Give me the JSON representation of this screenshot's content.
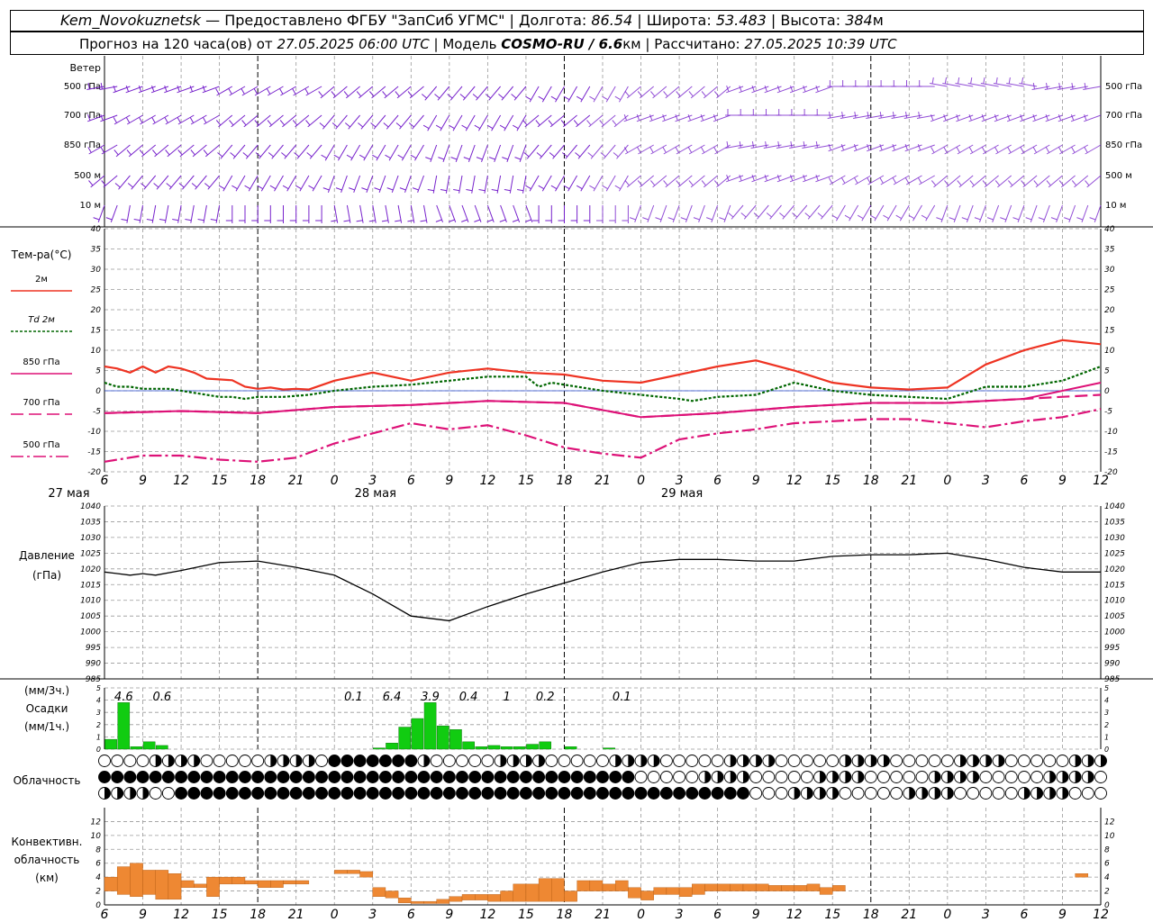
{
  "header": {
    "station": "Kem_Novokuznetsk",
    "dash": "—",
    "provider": "Предоставлено ФГБУ \"ЗапСиб УГМС\"",
    "lon_label": "Долгота:",
    "lon": "86.54",
    "lat_label": "Широта:",
    "lat": "53.483",
    "alt_label": "Высота:",
    "alt": "384",
    "alt_unit": "м",
    "sep": "|",
    "forecast_prefix": "Прогноз на 120 часа(ов) от",
    "forecast_from": "27.05.2025 06:00 UTC",
    "model_label": "Модель",
    "model": "COSMO-RU / 6.6",
    "model_unit": "км",
    "calc_label": "Рассчитано:",
    "calc_time": "27.05.2025 10:39 UTC"
  },
  "colors": {
    "t2m": "#ee3322",
    "td2m": "#006600",
    "t850": "#dd1177",
    "t700": "#dd1177",
    "t500": "#dd1177",
    "pressure": "#000000",
    "precip": "#11cc11",
    "convective": "#ee8833",
    "wind": "#7722cc",
    "grid": "#999999"
  },
  "time_axis": {
    "hour_ticks": [
      "6",
      "9",
      "12",
      "15",
      "18",
      "21",
      "0",
      "3",
      "6",
      "9",
      "12",
      "15",
      "18",
      "21",
      "0",
      "3",
      "6",
      "9",
      "12",
      "15",
      "18",
      "21",
      "0",
      "3",
      "6",
      "9",
      "12"
    ],
    "day_labels": [
      {
        "hour": 3,
        "label": "27 мая"
      },
      {
        "hour": 27,
        "label": "28 мая"
      },
      {
        "hour": 51,
        "label": "29 мая"
      }
    ],
    "day_boundaries": [
      18,
      42,
      66
    ]
  },
  "wind_panel": {
    "title": "Ветер",
    "levels": [
      "500 гПа",
      "700 гПа",
      "850 гПа",
      "500 м",
      "10 м"
    ]
  },
  "temp_panel": {
    "title": "Тем-ра(°С)",
    "legend": [
      "2м",
      "Td 2м",
      "850 гПа",
      "700 гПа",
      "500 гПа"
    ]
  },
  "pressure_panel": {
    "title_line1": "Давление",
    "title_line2": "(гПа)"
  },
  "precip_panel": {
    "title_line1": "(мм/3ч.)",
    "title_line2": "Осадки",
    "title_line3": "(мм/1ч.)"
  },
  "cloud_panel": {
    "title": "Облачность"
  },
  "conv_panel": {
    "title_line1": "Конвективн.",
    "title_line2": "облачность",
    "title_line3": "(км)"
  },
  "chart_data": [
    {
      "type": "line",
      "title": "Тем-ра(°С)",
      "xlabel": "",
      "ylabel": "Тем-ра(°С)",
      "x_unit": "hours from 27.05.2025 00 UTC",
      "xlim": [
        6,
        84
      ],
      "ylim": [
        -20,
        40
      ],
      "yticks": [
        -20,
        -15,
        -10,
        -5,
        0,
        5,
        10,
        15,
        20,
        25,
        30,
        35,
        40
      ],
      "grid": true,
      "series": [
        {
          "name": "2м",
          "x": [
            6,
            7,
            8,
            9,
            10,
            11,
            12,
            13,
            14,
            15,
            16,
            17,
            18,
            19,
            20,
            21,
            22,
            24,
            27,
            30,
            33,
            36,
            39,
            42,
            45,
            48,
            51,
            54,
            57,
            60,
            63,
            66,
            69,
            72,
            75,
            78,
            81,
            84
          ],
          "values": [
            6,
            5.5,
            4.5,
            6,
            4.5,
            6,
            5.5,
            4.5,
            3,
            2.8,
            2.6,
            1,
            0.5,
            0.8,
            0.3,
            0.5,
            0.3,
            2.5,
            4.5,
            2.5,
            4.5,
            5.5,
            4.5,
            4,
            2.5,
            2,
            4,
            6,
            7.5,
            5,
            2,
            0.8,
            0.3,
            0.8,
            6.5,
            10,
            12.5,
            11.5
          ]
        },
        {
          "name": "Td 2м",
          "x": [
            6,
            7,
            8,
            9,
            10,
            11,
            12,
            14,
            15,
            16,
            17,
            18,
            20,
            22,
            24,
            27,
            30,
            33,
            36,
            39,
            40,
            41,
            42,
            45,
            48,
            51,
            52,
            54,
            57,
            60,
            63,
            66,
            69,
            72,
            75,
            78,
            81,
            84
          ],
          "values": [
            2,
            1,
            1,
            0.5,
            0.5,
            0.5,
            0,
            -1,
            -1.5,
            -1.5,
            -2,
            -1.5,
            -1.5,
            -1,
            0,
            1,
            1.5,
            2.5,
            3.5,
            3.5,
            1,
            2,
            1.5,
            0,
            -1,
            -2,
            -2.5,
            -1.5,
            -1,
            2,
            0,
            -1,
            -1.5,
            -2,
            1,
            1,
            2.5,
            6
          ]
        },
        {
          "name": "850 гПа",
          "x": [
            6,
            12,
            18,
            24,
            30,
            36,
            42,
            48,
            54,
            60,
            66,
            72,
            78,
            84
          ],
          "values": [
            -5.5,
            -5,
            -5.5,
            -4,
            -3.5,
            -2.5,
            -3,
            -6.5,
            -5.5,
            -4,
            -3,
            -3,
            -2,
            2
          ]
        },
        {
          "name": "700 гПа",
          "x": [
            6,
            12,
            18,
            24,
            30,
            36,
            42,
            48,
            54,
            60,
            66,
            72,
            78,
            84
          ],
          "values": [
            -5.5,
            -5,
            -5.5,
            -4,
            -3.5,
            -2.5,
            -3,
            -6.5,
            -5.5,
            -4,
            -3,
            -3,
            -2,
            -1
          ]
        },
        {
          "name": "500 гПа",
          "x": [
            6,
            9,
            12,
            15,
            18,
            21,
            24,
            27,
            30,
            33,
            36,
            39,
            42,
            45,
            48,
            51,
            54,
            57,
            60,
            63,
            66,
            69,
            72,
            75,
            78,
            81,
            84
          ],
          "values": [
            -17.5,
            -16,
            -16,
            -17,
            -17.5,
            -16.5,
            -13,
            -10.5,
            -8,
            -9.5,
            -8.5,
            -11,
            -14,
            -15.5,
            -16.5,
            -12,
            -10.5,
            -9.5,
            -8,
            -7.5,
            -7,
            -7,
            -8,
            -9,
            -7.5,
            -6.5,
            -4.5
          ]
        }
      ]
    },
    {
      "type": "line",
      "title": "Давление",
      "ylabel": "(гПа)",
      "xlim": [
        6,
        84
      ],
      "ylim": [
        985,
        1040
      ],
      "yticks": [
        985,
        990,
        995,
        1000,
        1005,
        1010,
        1015,
        1020,
        1025,
        1030,
        1035,
        1040
      ],
      "grid": true,
      "series": [
        {
          "name": "",
          "x": [
            6,
            8,
            9,
            10,
            12,
            15,
            18,
            21,
            24,
            27,
            30,
            33,
            36,
            39,
            42,
            45,
            48,
            51,
            54,
            57,
            60,
            63,
            66,
            69,
            72,
            75,
            78,
            81,
            84
          ],
          "values": [
            1019,
            1018,
            1018.5,
            1018,
            1019.5,
            1022,
            1022.5,
            1020.5,
            1018,
            1012,
            1005,
            1003.5,
            1008,
            1012,
            1015.5,
            1019,
            1022,
            1023,
            1023,
            1022.5,
            1022.5,
            1024,
            1024.5,
            1024.5,
            1025,
            1023,
            1020.5,
            1019,
            1019
          ]
        }
      ]
    },
    {
      "type": "bar",
      "title": "Осадки",
      "ylabel": "(мм/1ч.)",
      "xlim": [
        6,
        84
      ],
      "ylim": [
        0,
        5
      ],
      "yticks": [
        0,
        1,
        2,
        3,
        4,
        5
      ],
      "series": [
        {
          "name": "мм/1ч",
          "x": [
            6,
            7,
            8,
            9,
            10,
            27,
            28,
            29,
            30,
            31,
            32,
            33,
            34,
            35,
            36,
            37,
            38,
            39,
            40,
            42,
            45
          ],
          "values": [
            0.8,
            3.8,
            0.2,
            0.6,
            0.3,
            0.1,
            0.5,
            1.8,
            2.5,
            3.8,
            1.9,
            1.6,
            0.6,
            0.2,
            0.3,
            0.2,
            0.2,
            0.4,
            0.6,
            0.2,
            0.1
          ]
        }
      ],
      "labels_3h": [
        {
          "x": 7.5,
          "text": "4.6"
        },
        {
          "x": 10.5,
          "text": "0.6"
        },
        {
          "x": 25.5,
          "text": "0.1"
        },
        {
          "x": 28.5,
          "text": "6.4"
        },
        {
          "x": 31.5,
          "text": "3.9"
        },
        {
          "x": 34.5,
          "text": "0.4"
        },
        {
          "x": 37.5,
          "text": "1"
        },
        {
          "x": 40.5,
          "text": "0.2"
        },
        {
          "x": 46.5,
          "text": "0.1"
        }
      ]
    },
    {
      "type": "bar",
      "title": "Конвективн. облачность",
      "ylabel": "(км)",
      "xlim": [
        6,
        84
      ],
      "ylim": [
        0,
        14
      ],
      "yticks": [
        0,
        2,
        4,
        6,
        8,
        10,
        12
      ],
      "series": [
        {
          "name": "base-top",
          "x": [
            6,
            7,
            8,
            9,
            10,
            11,
            12,
            13,
            14,
            15,
            16,
            17,
            18,
            19,
            20,
            21,
            24,
            25,
            26,
            27,
            28,
            29,
            30,
            31,
            32,
            33,
            34,
            35,
            36,
            37,
            38,
            39,
            40,
            41,
            42,
            43,
            44,
            45,
            46,
            47,
            48,
            49,
            50,
            51,
            52,
            53,
            54,
            55,
            56,
            57,
            58,
            59,
            60,
            61,
            62,
            63,
            82
          ],
          "base": [
            2,
            1.5,
            1.2,
            1.5,
            0.8,
            0.8,
            2.5,
            2.5,
            1.2,
            3,
            3,
            3,
            2.5,
            2.5,
            3,
            3,
            4.5,
            4.5,
            4,
            1.2,
            1,
            0.3,
            0.2,
            0.2,
            0.2,
            0.5,
            0.7,
            0.7,
            0.5,
            0.5,
            0.5,
            0.5,
            0.5,
            0.5,
            0.5,
            2,
            2,
            2,
            2,
            1,
            0.7,
            1.5,
            1.5,
            1.2,
            1.5,
            2,
            2,
            2,
            2,
            2,
            2,
            2,
            2,
            2,
            1.5,
            2,
            4
          ],
          "top": [
            4,
            5.5,
            6,
            5,
            5,
            4.5,
            3.5,
            3,
            4,
            4,
            4,
            3.5,
            3.5,
            3.5,
            3.5,
            3.5,
            5,
            5,
            4.8,
            2.5,
            2,
            1,
            0.5,
            0.5,
            0.8,
            1.2,
            1.5,
            1.5,
            1.5,
            2,
            3,
            3,
            3.8,
            3.8,
            2,
            3.5,
            3.5,
            3,
            3.5,
            2.5,
            2,
            2.5,
            2.5,
            2.5,
            3,
            3,
            3,
            3,
            3,
            3,
            2.8,
            2.8,
            2.8,
            3,
            2.5,
            2.8,
            4.5
          ]
        }
      ]
    }
  ]
}
